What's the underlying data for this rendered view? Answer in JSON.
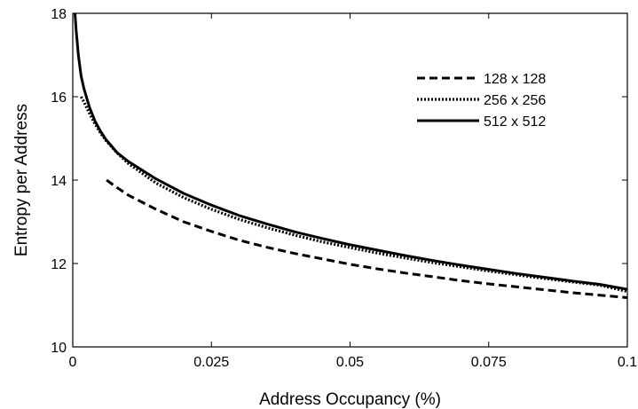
{
  "chart_data": {
    "type": "line",
    "title": "",
    "xlabel": "Address Occupancy (%)",
    "ylabel": "Entropy per Address",
    "xlim": [
      0,
      0.1
    ],
    "ylim": [
      10,
      18
    ],
    "xticks": [
      0,
      0.025,
      0.05,
      0.075,
      0.1
    ],
    "xtick_labels": [
      "0",
      "0.025",
      "0.05",
      "0.075",
      "0.1"
    ],
    "yticks": [
      10,
      12,
      14,
      16,
      18
    ],
    "ytick_labels": [
      "10",
      "12",
      "14",
      "16",
      "18"
    ],
    "grid": false,
    "legend_position": "top-right",
    "colors": {
      "line": "#000000",
      "background": "#ffffff",
      "axes": "#000000"
    },
    "series": [
      {
        "name": "128 x 128",
        "style": "dashed",
        "x": [
          0.0061,
          0.008,
          0.01,
          0.015,
          0.02,
          0.025,
          0.03,
          0.035,
          0.04,
          0.045,
          0.05,
          0.055,
          0.06,
          0.065,
          0.07,
          0.075,
          0.08,
          0.085,
          0.09,
          0.095,
          0.1
        ],
        "y": [
          14.0,
          13.82,
          13.64,
          13.3,
          13.0,
          12.77,
          12.56,
          12.39,
          12.24,
          12.11,
          11.98,
          11.87,
          11.77,
          11.68,
          11.59,
          11.51,
          11.44,
          11.37,
          11.3,
          11.24,
          11.18
        ]
      },
      {
        "name": "256 x 256",
        "style": "dotted",
        "x": [
          0.0015,
          0.002,
          0.003,
          0.004,
          0.005,
          0.006,
          0.008,
          0.01,
          0.015,
          0.02,
          0.025,
          0.03,
          0.035,
          0.04,
          0.045,
          0.05,
          0.055,
          0.06,
          0.065,
          0.07,
          0.075,
          0.08,
          0.085,
          0.09,
          0.095,
          0.1
        ],
        "y": [
          16.0,
          15.88,
          15.6,
          15.35,
          15.13,
          14.95,
          14.65,
          14.4,
          13.93,
          13.58,
          13.3,
          13.06,
          12.86,
          12.68,
          12.52,
          12.38,
          12.25,
          12.13,
          12.02,
          11.92,
          11.82,
          11.73,
          11.64,
          11.56,
          11.48,
          11.33
        ]
      },
      {
        "name": "512 x 512",
        "style": "solid",
        "x": [
          0.0004,
          0.0006,
          0.001,
          0.0015,
          0.002,
          0.003,
          0.004,
          0.005,
          0.006,
          0.008,
          0.01,
          0.015,
          0.02,
          0.025,
          0.03,
          0.035,
          0.04,
          0.045,
          0.05,
          0.055,
          0.06,
          0.065,
          0.07,
          0.075,
          0.08,
          0.085,
          0.09,
          0.095,
          0.1
        ],
        "y": [
          18.0,
          17.6,
          17.0,
          16.5,
          16.2,
          15.75,
          15.42,
          15.17,
          14.97,
          14.66,
          14.45,
          14.03,
          13.68,
          13.4,
          13.15,
          12.95,
          12.76,
          12.6,
          12.45,
          12.32,
          12.19,
          12.07,
          11.96,
          11.86,
          11.76,
          11.67,
          11.58,
          11.5,
          11.38
        ]
      }
    ]
  }
}
